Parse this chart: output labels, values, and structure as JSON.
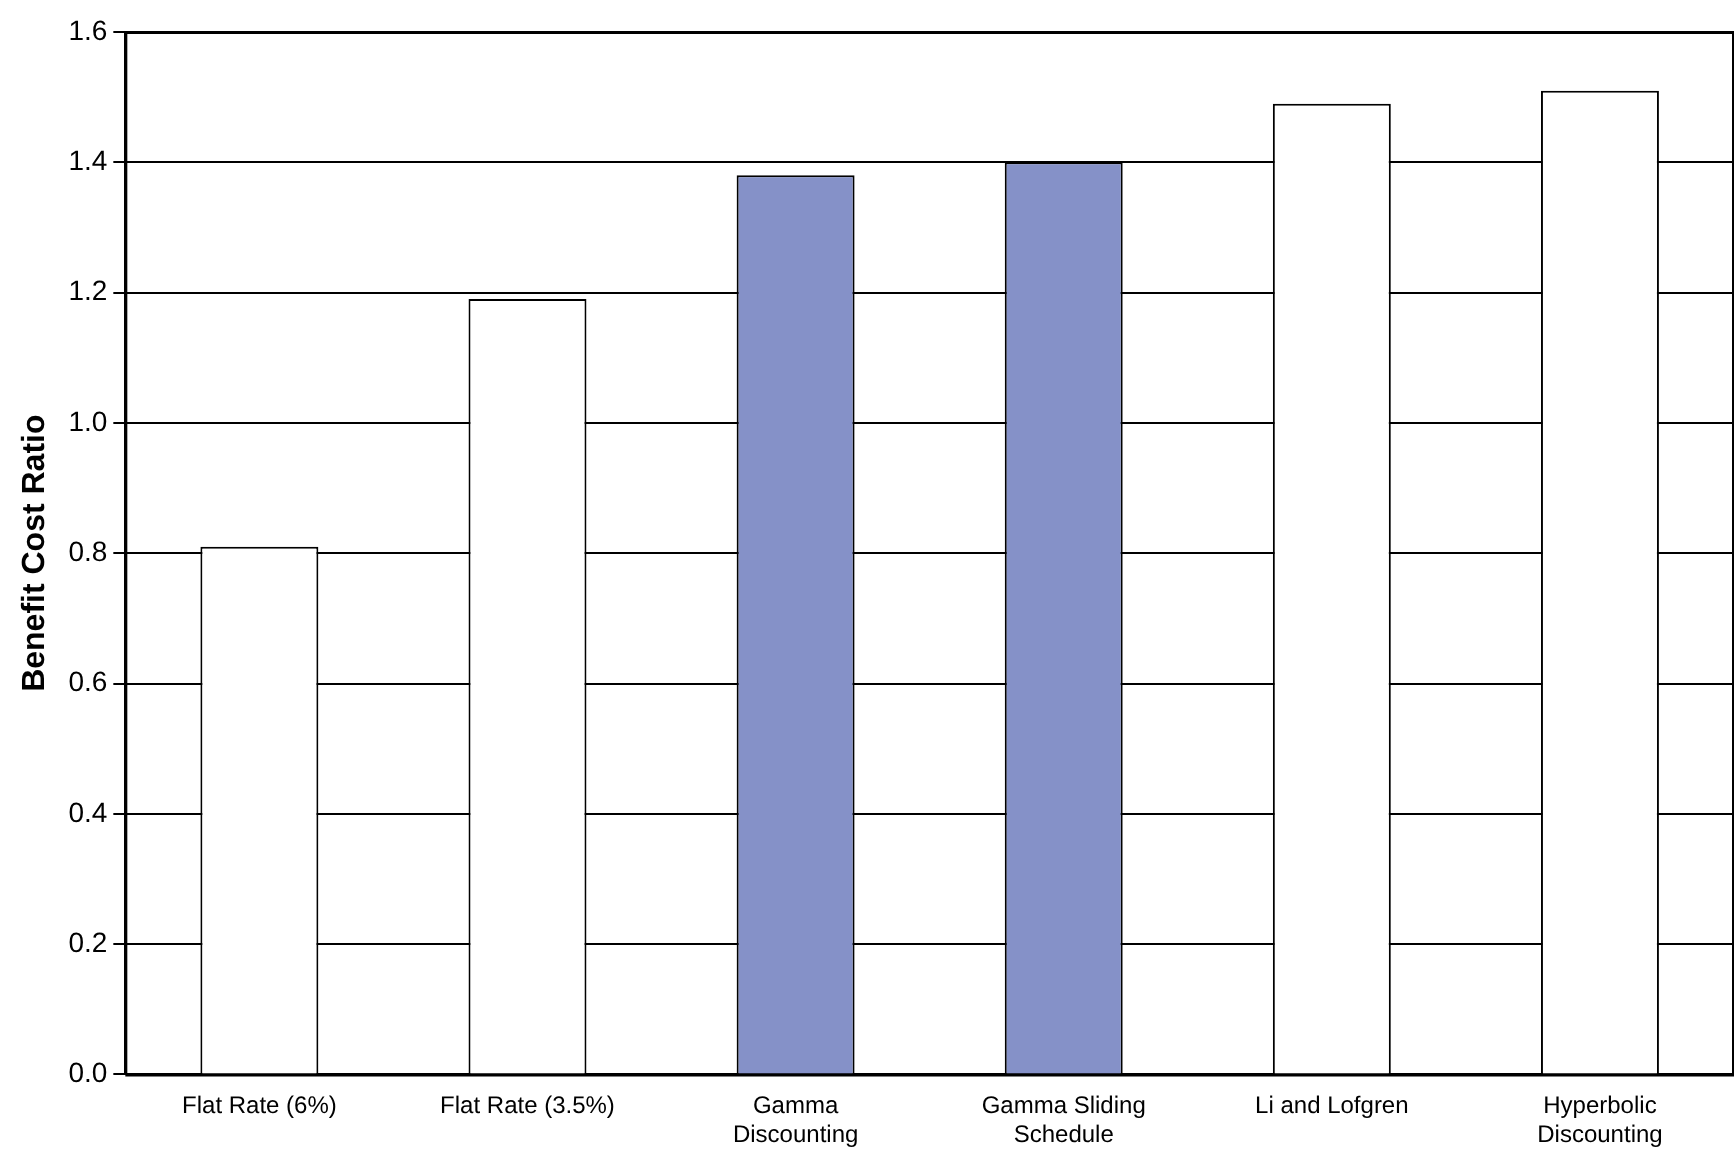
{
  "chart_data": {
    "type": "bar",
    "ylabel": "Benefit Cost Ratio",
    "categories": [
      "Flat Rate (6%)",
      "Flat Rate (3.5%)",
      "Gamma Discounting",
      "Gamma Sliding Schedule",
      "Li and Lofgren",
      "Hyperbolic Discounting"
    ],
    "values": [
      0.81,
      1.19,
      1.38,
      1.4,
      1.49,
      1.51
    ],
    "colors": [
      "#ffffff",
      "#ffffff",
      "#8591c8",
      "#8591c8",
      "#ffffff",
      "#ffffff"
    ],
    "ylim": [
      0,
      1.6
    ],
    "yticks": [
      {
        "value": 0,
        "label": "0.0"
      },
      {
        "value": 0.2,
        "label": "0.2"
      },
      {
        "value": 0.4,
        "label": "0.4"
      },
      {
        "value": 0.6,
        "label": "0.6"
      },
      {
        "value": 0.8,
        "label": "0.8"
      },
      {
        "value": 1,
        "label": "1.0"
      },
      {
        "value": 1.2,
        "label": "1.2"
      },
      {
        "value": 1.4,
        "label": "1.4"
      },
      {
        "value": 1.6,
        "label": "1.6"
      }
    ],
    "grid": "y",
    "legend": false
  }
}
